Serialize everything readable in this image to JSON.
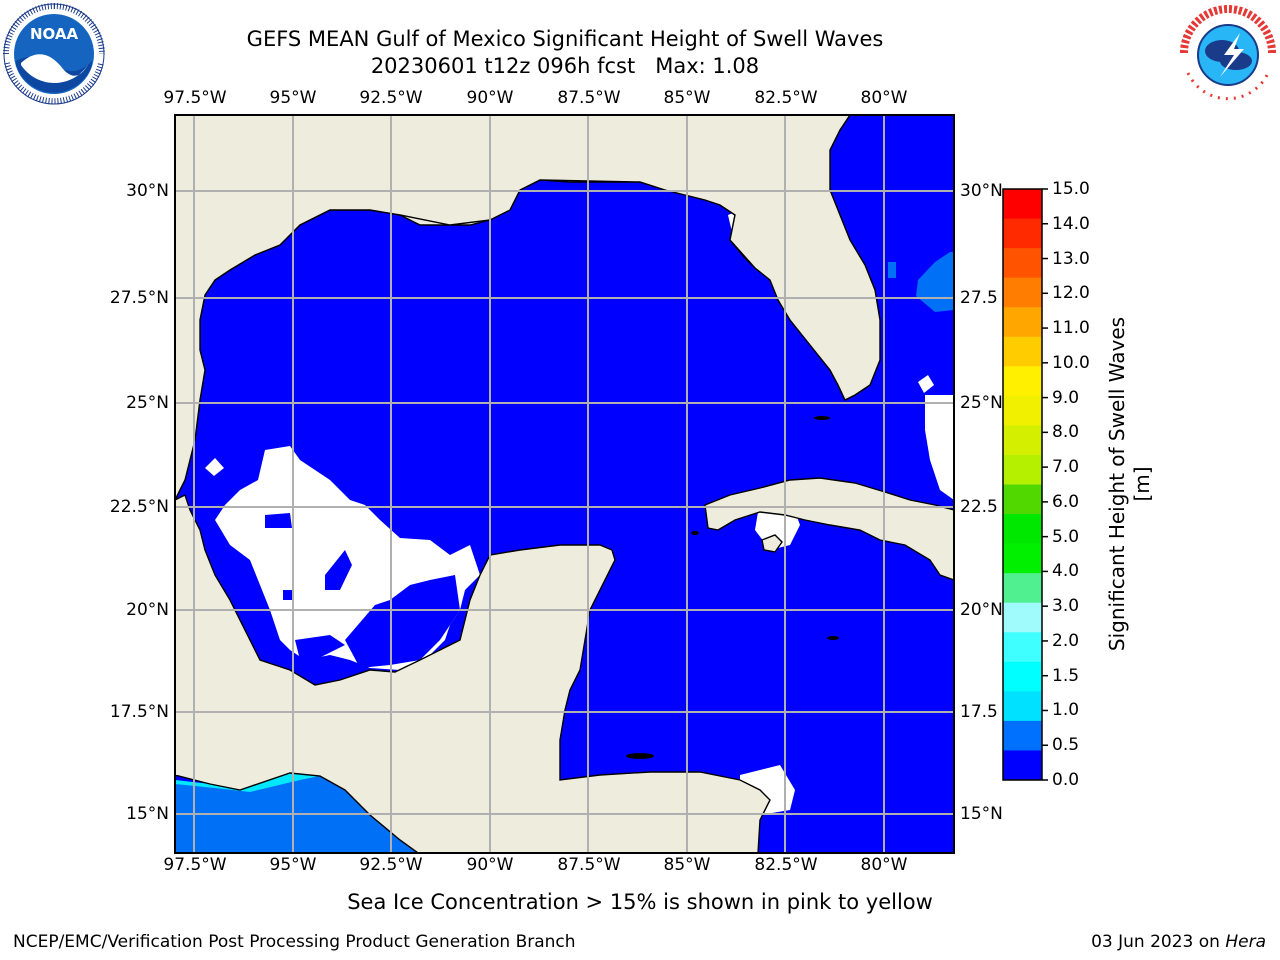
{
  "titles": {
    "line1": "GEFS MEAN Gulf of Mexico Significant Height of Swell Waves",
    "line2": "20230601 t12z 096h fcst   Max: 1.08"
  },
  "map": {
    "lon_labels": [
      "97.5°W",
      "95°W",
      "92.5°W",
      "90°W",
      "87.5°W",
      "85°W",
      "82.5°W",
      "80°W"
    ],
    "lat_labels_left": [
      "30°N",
      "27.5°N",
      "25°N",
      "22.5°N",
      "20°N",
      "17.5°N",
      "15°N"
    ],
    "lat_labels_right": [
      "30°N",
      "27.5",
      "25°N",
      "22.5",
      "20°N",
      "17.5",
      "15°N"
    ],
    "extent": {
      "lon_min": -98.0,
      "lon_max": -79.2,
      "lat_min": 14.0,
      "lat_max": 31.8
    },
    "colors": {
      "land": "#eeecdc",
      "ocean_low": "#0000ff",
      "ocean_mid": "#0070f6",
      "grid": "#b0b0b0"
    }
  },
  "colorbar": {
    "title": "Significant Height of Swell Waves [m]",
    "ticks": [
      "15.0",
      "14.0",
      "13.0",
      "12.0",
      "11.0",
      "10.0",
      "9.0",
      "8.0",
      "7.0",
      "6.0",
      "5.0",
      "4.0",
      "3.0",
      "2.0",
      "1.5",
      "1.0",
      "0.5",
      "0.0"
    ],
    "colors": [
      "#ff0000",
      "#ff2a00",
      "#ff5300",
      "#ff7d00",
      "#ffa600",
      "#ffcc00",
      "#fff000",
      "#f0f000",
      "#d4f000",
      "#b4f000",
      "#50d800",
      "#00e800",
      "#00f000",
      "#50f090",
      "#a0fcfc",
      "#40ffff",
      "#00ffff",
      "#00e0ff",
      "#0070ff",
      "#0000ff"
    ]
  },
  "note": "Sea Ice Concentration > 15% is shown in pink to yellow",
  "footer": {
    "left": "NCEP/EMC/Verification Post Processing Product Generation Branch",
    "date": "03 Jun 2023 on ",
    "host": "Hera"
  },
  "logos": {
    "noaa": "NOAA",
    "nws": "NATIONAL WEATHER SERVICE"
  }
}
